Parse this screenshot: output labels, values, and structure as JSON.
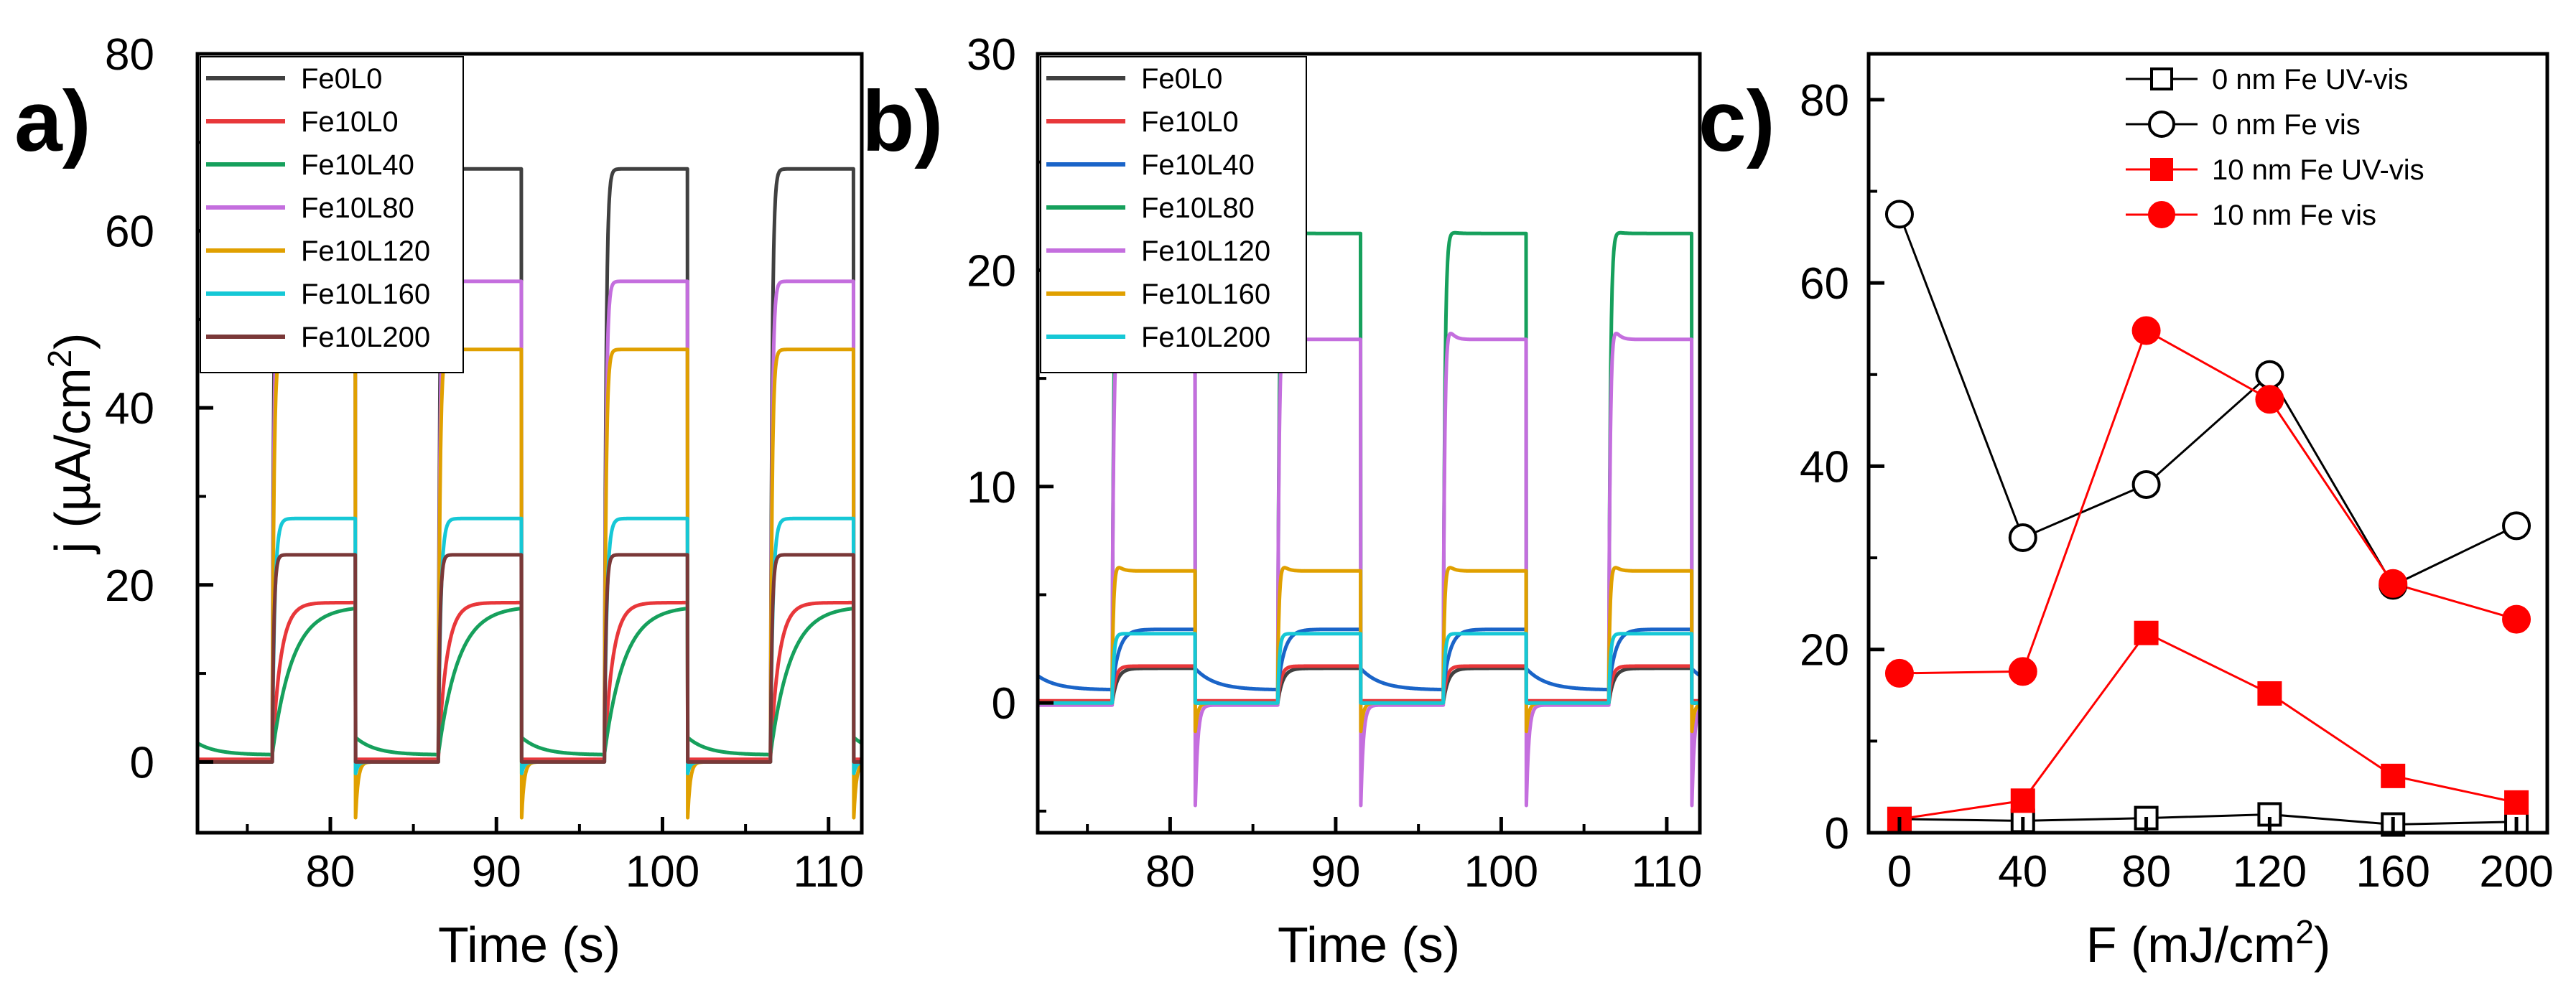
{
  "chart_data": [
    {
      "panel": "a)",
      "type": "line",
      "xlabel": "Time (s)",
      "ylabel": "j (µA/cm2)",
      "xlim": [
        72,
        112
      ],
      "ylim": [
        -8,
        80
      ],
      "xticks": [
        80,
        90,
        100,
        110
      ],
      "yticks": [
        0,
        20,
        40,
        60,
        80
      ],
      "light_periods": [
        [
          76.5,
          81.5
        ],
        [
          86.5,
          91.5
        ],
        [
          96.5,
          101.5
        ],
        [
          106.5,
          111.5
        ]
      ],
      "legend_position": "top-left",
      "series": [
        {
          "name": "Fe0L0",
          "color": "#404040",
          "dark": 0,
          "on_plateau": 67.0,
          "spike_on": 0,
          "spike_off": 0,
          "rise_tau": 0.1
        },
        {
          "name": "Fe10L0",
          "color": "#e8373a",
          "dark": 0.3,
          "on_plateau": 18.0,
          "spike_on": 0,
          "spike_off": 0,
          "rise_tau": 0.5
        },
        {
          "name": "Fe10L40",
          "color": "#16a05c",
          "dark": 0.8,
          "on_plateau": 17.6,
          "spike_on": 0,
          "spike_off": 0,
          "rise_tau": 1.2,
          "dark_decay": 2.0
        },
        {
          "name": "Fe10L80",
          "color": "#c46ede",
          "dark": 0,
          "on_plateau": 54.3,
          "spike_on": 0,
          "spike_off": 0,
          "rise_tau": 0.1
        },
        {
          "name": "Fe10L120",
          "color": "#e0a000",
          "dark": 0,
          "on_plateau": 46.6,
          "spike_on": 0,
          "spike_off": -7.2,
          "rise_tau": 0.1
        },
        {
          "name": "Fe10L160",
          "color": "#16c8d6",
          "dark": 0,
          "on_plateau": 27.5,
          "spike_on": 0,
          "spike_off": -1.5,
          "rise_tau": 0.15
        },
        {
          "name": "Fe10L200",
          "color": "#7a3838",
          "dark": 0,
          "on_plateau": 23.4,
          "spike_on": 0,
          "spike_off": 0,
          "rise_tau": 0.1
        }
      ]
    },
    {
      "panel": "b)",
      "type": "line",
      "xlabel": "Time (s)",
      "ylabel": "",
      "xlim": [
        72,
        112
      ],
      "ylim": [
        -6,
        30
      ],
      "xticks": [
        80,
        90,
        100,
        110
      ],
      "yticks": [
        0,
        10,
        20,
        30
      ],
      "light_periods": [
        [
          76.5,
          81.5
        ],
        [
          86.5,
          91.5
        ],
        [
          96.5,
          101.5
        ],
        [
          106.5,
          111.5
        ]
      ],
      "legend_position": "top-left",
      "series": [
        {
          "name": "Fe0L0",
          "color": "#404040",
          "dark": 0,
          "on_plateau": 1.6,
          "spike_on": 0,
          "spike_off": 0,
          "rise_tau": 0.3
        },
        {
          "name": "Fe10L0",
          "color": "#e8373a",
          "dark": 0.1,
          "on_plateau": 1.7,
          "spike_on": 0,
          "spike_off": 0,
          "rise_tau": 0.2
        },
        {
          "name": "Fe10L40",
          "color": "#1a64c8",
          "dark": 0.6,
          "on_plateau": 3.4,
          "spike_on": 0,
          "spike_off": 0,
          "rise_tau": 0.4,
          "dark_decay": 1.0
        },
        {
          "name": "Fe10L80",
          "color": "#16a05c",
          "dark": 0,
          "on_plateau": 21.7,
          "spike_on": 0.8,
          "spike_off": 0,
          "rise_tau": 0.1
        },
        {
          "name": "Fe10L120",
          "color": "#c46ede",
          "dark": -0.1,
          "on_plateau": 16.8,
          "spike_on": 2.8,
          "spike_off": -5.3,
          "rise_tau": 0.1
        },
        {
          "name": "Fe10L160",
          "color": "#e0a000",
          "dark": 0,
          "on_plateau": 6.1,
          "spike_on": 1.3,
          "spike_off": -1.5,
          "rise_tau": 0.1
        },
        {
          "name": "Fe10L200",
          "color": "#16c8d6",
          "dark": 0,
          "on_plateau": 3.2,
          "spike_on": 0,
          "spike_off": 0,
          "rise_tau": 0.1
        }
      ]
    },
    {
      "panel": "c)",
      "type": "line",
      "xlabel": "F (mJ/cm2)",
      "ylabel": "",
      "xlim": [
        -10,
        210
      ],
      "ylim": [
        0,
        85
      ],
      "xticks": [
        0,
        40,
        80,
        120,
        160,
        200
      ],
      "yticks": [
        0,
        20,
        40,
        60,
        80
      ],
      "legend_position": "top-right",
      "x": [
        0,
        40,
        80,
        120,
        160,
        200
      ],
      "series": [
        {
          "name": "0 nm Fe UV-vis",
          "color": "#000000",
          "marker": "square-open",
          "values": [
            1.5,
            1.3,
            1.6,
            2.0,
            0.9,
            1.2
          ]
        },
        {
          "name": "0 nm Fe vis",
          "color": "#000000",
          "marker": "circle-open",
          "values": [
            67.5,
            32.2,
            38.0,
            50.0,
            27.0,
            33.5
          ]
        },
        {
          "name": "10 nm Fe UV-vis",
          "color": "#ff0000",
          "marker": "square-filled",
          "values": [
            1.5,
            3.5,
            21.8,
            15.2,
            6.2,
            3.3
          ]
        },
        {
          "name": "10 nm Fe vis",
          "color": "#ff0000",
          "marker": "circle-filled",
          "values": [
            17.4,
            17.6,
            54.8,
            47.3,
            27.2,
            23.3
          ]
        }
      ]
    }
  ]
}
